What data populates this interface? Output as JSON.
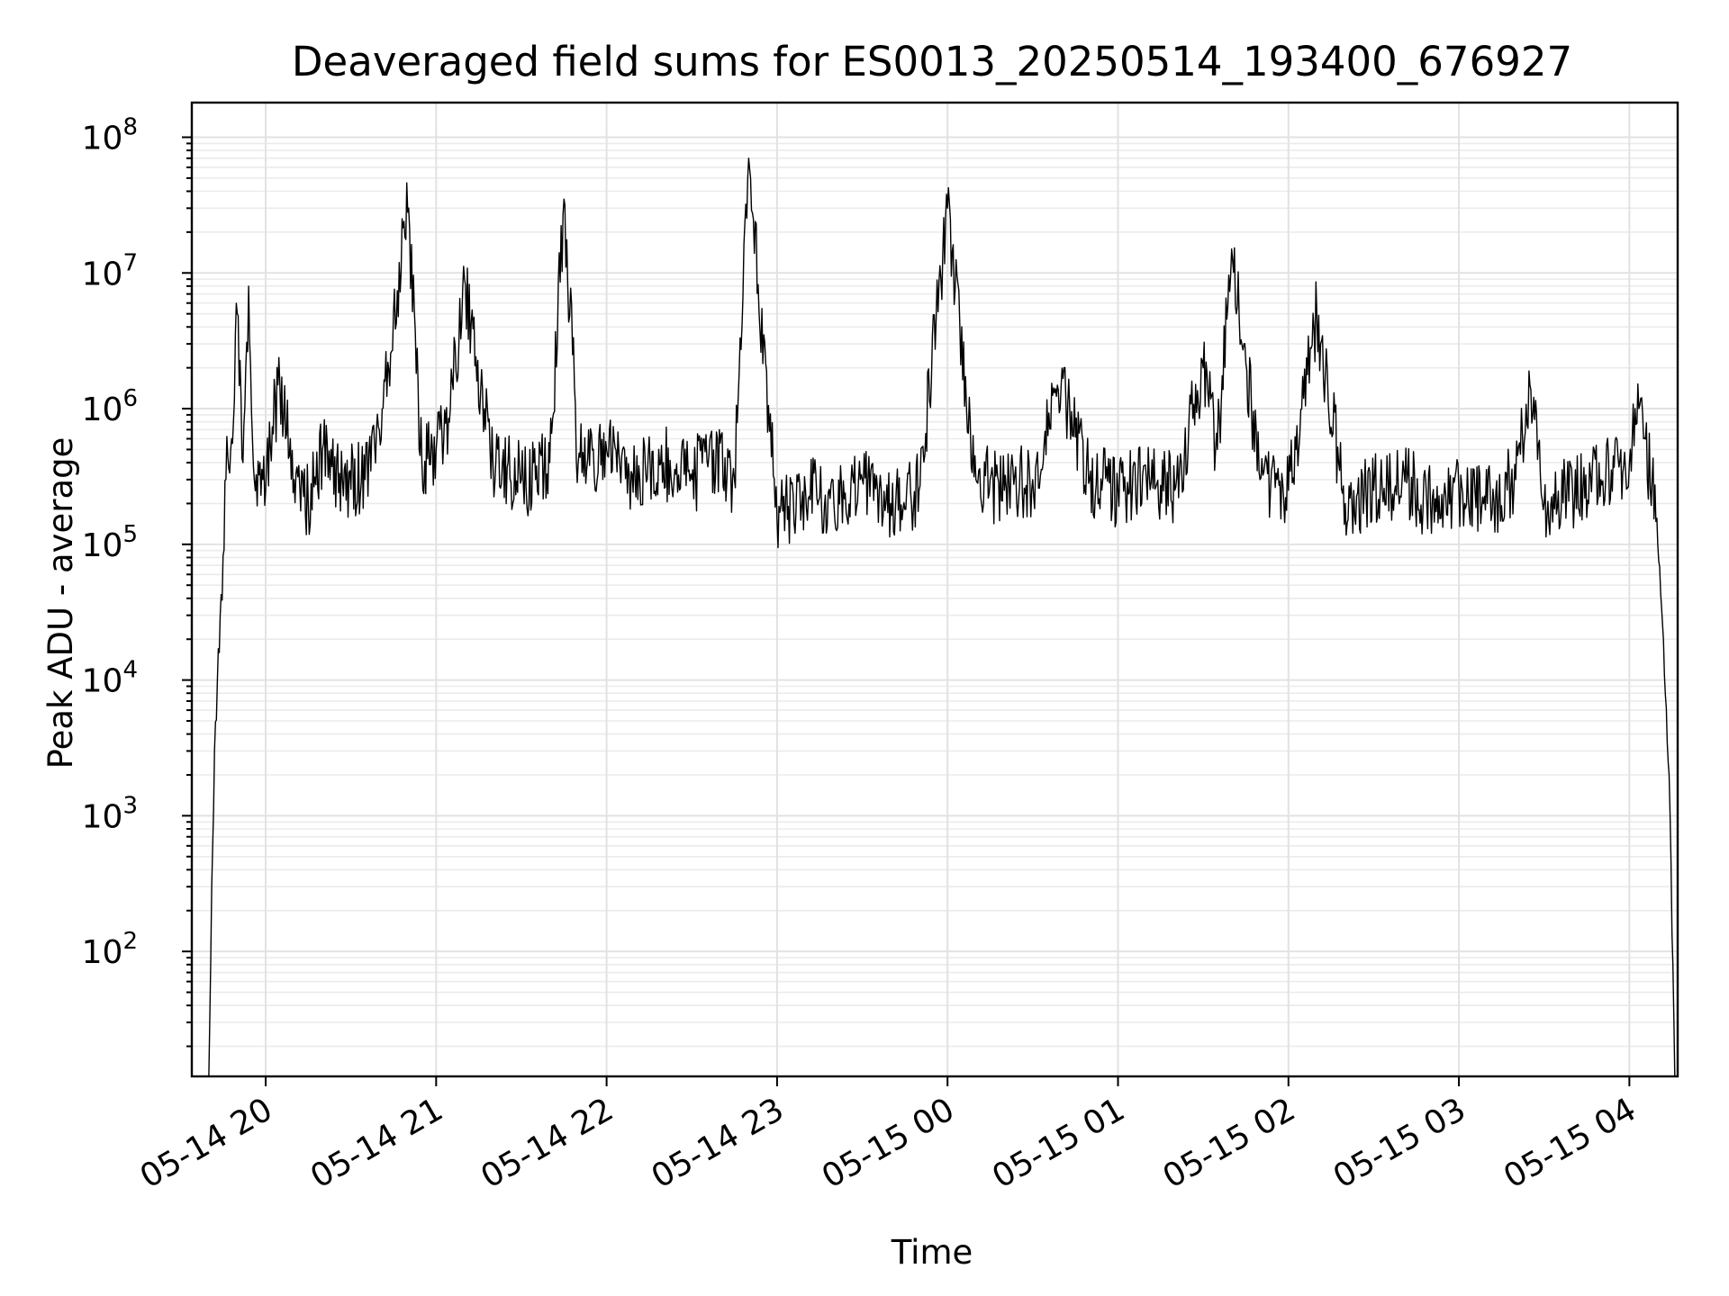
{
  "chart_data": {
    "type": "line",
    "title": "Deaveraged field sums for ES0013_20250514_193400_676927",
    "xlabel": "Time",
    "ylabel": "Peak ADU - average",
    "y_scale": "log",
    "y_range": [
      12,
      180000000
    ],
    "x_range": [
      "05-14 19:34",
      "05-15 04:17"
    ],
    "x_ticks": [
      "05-14 20",
      "05-14 21",
      "05-14 22",
      "05-14 23",
      "05-15 00",
      "05-15 01",
      "05-15 02",
      "05-15 03",
      "05-15 04"
    ],
    "y_ticks": [
      {
        "base": "10",
        "exp": "2"
      },
      {
        "base": "10",
        "exp": "3"
      },
      {
        "base": "10",
        "exp": "4"
      },
      {
        "base": "10",
        "exp": "5"
      },
      {
        "base": "10",
        "exp": "6"
      },
      {
        "base": "10",
        "exp": "7"
      },
      {
        "base": "10",
        "exp": "8"
      }
    ],
    "grid": "major and minor",
    "legend": "none",
    "line_color": "#000000",
    "series": [
      {
        "x": [
          "05-14 19:40",
          "05-14 19:41",
          "05-14 19:42",
          "05-14 19:43",
          "05-14 19:44",
          "05-14 19:46",
          "05-14 19:48",
          "05-14 19:50",
          "05-14 19:52",
          "05-14 19:54",
          "05-14 19:56",
          "05-14 19:58",
          "05-14 19:59",
          "05-14 20:05",
          "05-14 20:10",
          "05-14 20:15",
          "05-14 20:20",
          "05-14 20:27",
          "05-14 20:35",
          "05-14 20:40",
          "05-14 20:50",
          "05-14 20:55",
          "05-14 21:00",
          "05-14 21:05",
          "05-14 21:10",
          "05-14 21:20",
          "05-14 21:30",
          "05-14 21:35",
          "05-14 21:40",
          "05-14 21:45",
          "05-14 21:50",
          "05-14 22:00",
          "05-14 22:10",
          "05-14 22:20",
          "05-14 22:30",
          "05-14 22:36",
          "05-14 22:45",
          "05-14 22:50",
          "05-14 23:00",
          "05-14 23:10",
          "05-14 23:20",
          "05-14 23:30",
          "05-14 23:40",
          "05-14 23:50",
          "05-15 00:00",
          "05-15 00:10",
          "05-15 00:20",
          "05-15 00:30",
          "05-15 00:40",
          "05-15 00:50",
          "05-15 01:00",
          "05-15 01:10",
          "05-15 01:20",
          "05-15 01:30",
          "05-15 01:35",
          "05-15 01:40",
          "05-15 01:50",
          "05-15 02:00",
          "05-15 02:10",
          "05-15 02:20",
          "05-15 02:30",
          "05-15 02:40",
          "05-15 02:50",
          "05-15 03:00",
          "05-15 03:10",
          "05-15 03:20",
          "05-15 03:25",
          "05-15 03:30",
          "05-15 03:40",
          "05-15 03:50",
          "05-15 04:00",
          "05-15 04:02",
          "05-15 04:05",
          "05-15 04:08",
          "05-15 04:10",
          "05-15 04:12",
          "05-15 04:14",
          "05-15 04:16"
        ],
        "y": [
          12,
          300,
          3000,
          10000,
          30000,
          300000,
          600000,
          5000000,
          400000,
          8000000,
          300000,
          400000,
          300000,
          1500000,
          300000,
          200000,
          500000,
          300000,
          300000,
          700000,
          28000000,
          400000,
          500000,
          1000000,
          9000000,
          400000,
          300000,
          300000,
          400000,
          35000000,
          400000,
          500000,
          300000,
          400000,
          300000,
          450000,
          300000,
          70000000,
          150000,
          250000,
          200000,
          300000,
          200000,
          250000,
          30000000,
          300000,
          250000,
          300000,
          1500000,
          300000,
          250000,
          300000,
          250000,
          2000000,
          500000,
          15000000,
          300000,
          250000,
          5000000,
          200000,
          250000,
          300000,
          200000,
          250000,
          200000,
          300000,
          1500000,
          200000,
          250000,
          300000,
          400000,
          1000000,
          600000,
          300000,
          100000,
          20000,
          2000,
          12
        ]
      }
    ]
  }
}
